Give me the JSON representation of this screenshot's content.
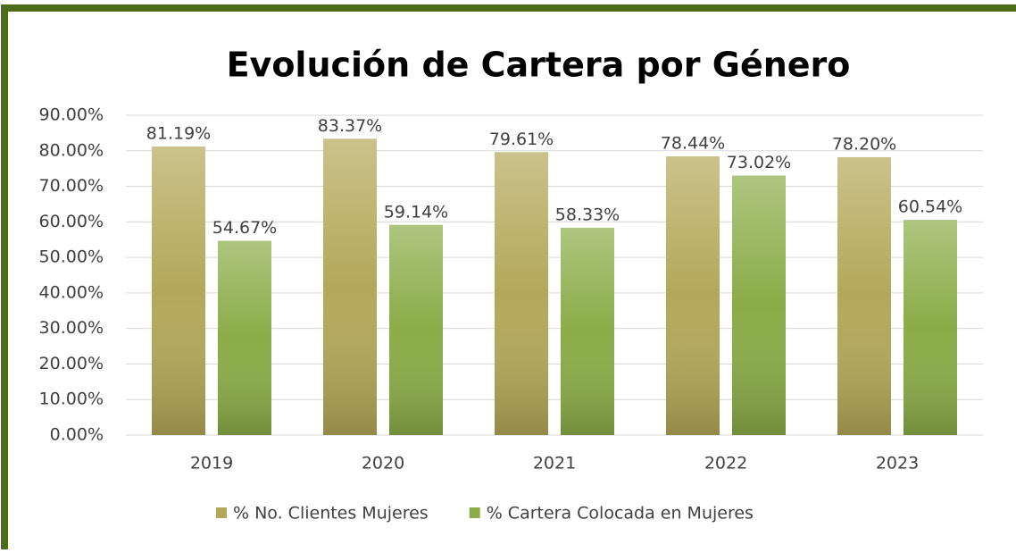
{
  "chart_data": {
    "type": "bar",
    "title": "Evolución de Cartera por Género",
    "categories": [
      "2019",
      "2020",
      "2021",
      "2022",
      "2023"
    ],
    "series": [
      {
        "name": "% No. Clientes Mujeres",
        "color": "#b3a859",
        "values": [
          81.19,
          83.37,
          79.61,
          78.44,
          78.2
        ],
        "value_labels": [
          "81.19%",
          "83.37%",
          "79.61%",
          "78.44%",
          "78.20%"
        ]
      },
      {
        "name": "% Cartera Colocada en Mujeres",
        "color": "#8bac48",
        "values": [
          54.67,
          59.14,
          58.33,
          73.02,
          60.54
        ],
        "value_labels": [
          "54.67%",
          "59.14%",
          "58.33%",
          "73.02%",
          "60.54%"
        ]
      }
    ],
    "ylim": [
      0,
      90
    ],
    "yticks": [
      {
        "value": 0,
        "label": "0.00%"
      },
      {
        "value": 10,
        "label": "10.00%"
      },
      {
        "value": 20,
        "label": "20.00%"
      },
      {
        "value": 30,
        "label": "30.00%"
      },
      {
        "value": 40,
        "label": "40.00%"
      },
      {
        "value": 50,
        "label": "50.00%"
      },
      {
        "value": 60,
        "label": "60.00%"
      },
      {
        "value": 70,
        "label": "70.00%"
      },
      {
        "value": 80,
        "label": "80.00%"
      },
      {
        "value": 90,
        "label": "90.00%"
      }
    ],
    "grid": true,
    "legend": "bottom"
  }
}
